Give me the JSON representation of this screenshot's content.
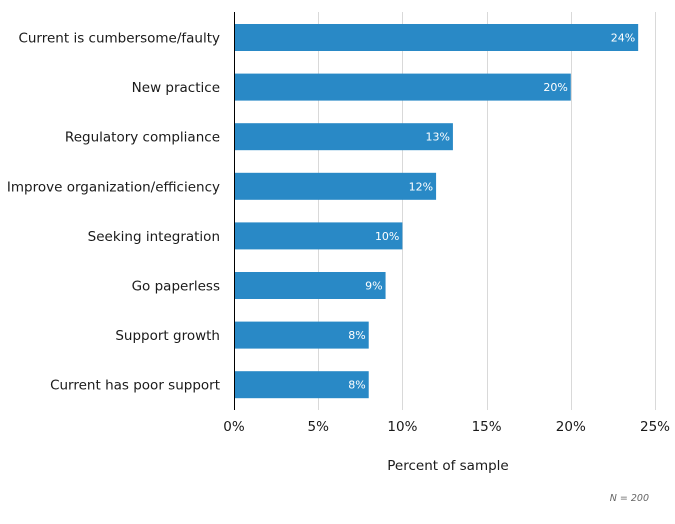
{
  "chart_data": {
    "type": "bar",
    "orientation": "horizontal",
    "title": "",
    "categories": [
      "Current is cumbersome/faulty",
      "New practice",
      "Regulatory compliance",
      "Improve organization/efficiency",
      "Seeking integration",
      "Go paperless",
      "Support growth",
      "Current has poor support"
    ],
    "values": [
      24,
      20,
      13,
      12,
      10,
      9,
      8,
      8
    ],
    "value_labels": [
      "24%",
      "20%",
      "13%",
      "12%",
      "10%",
      "9%",
      "8%",
      "8%"
    ],
    "xlabel": "Percent of sample",
    "ylabel": "",
    "xlim": [
      0,
      25
    ],
    "xticks": [
      0,
      5,
      10,
      15,
      20,
      25
    ],
    "xtick_labels": [
      "0%",
      "5%",
      "10%",
      "15%",
      "20%",
      "25%"
    ],
    "grid": "vertical",
    "legend": "none",
    "note": "N = 200",
    "colors": {
      "bar": "#2989c6",
      "grid": "#d9d9d9",
      "axis": "#000000",
      "bar_label": "#ffffff"
    }
  }
}
